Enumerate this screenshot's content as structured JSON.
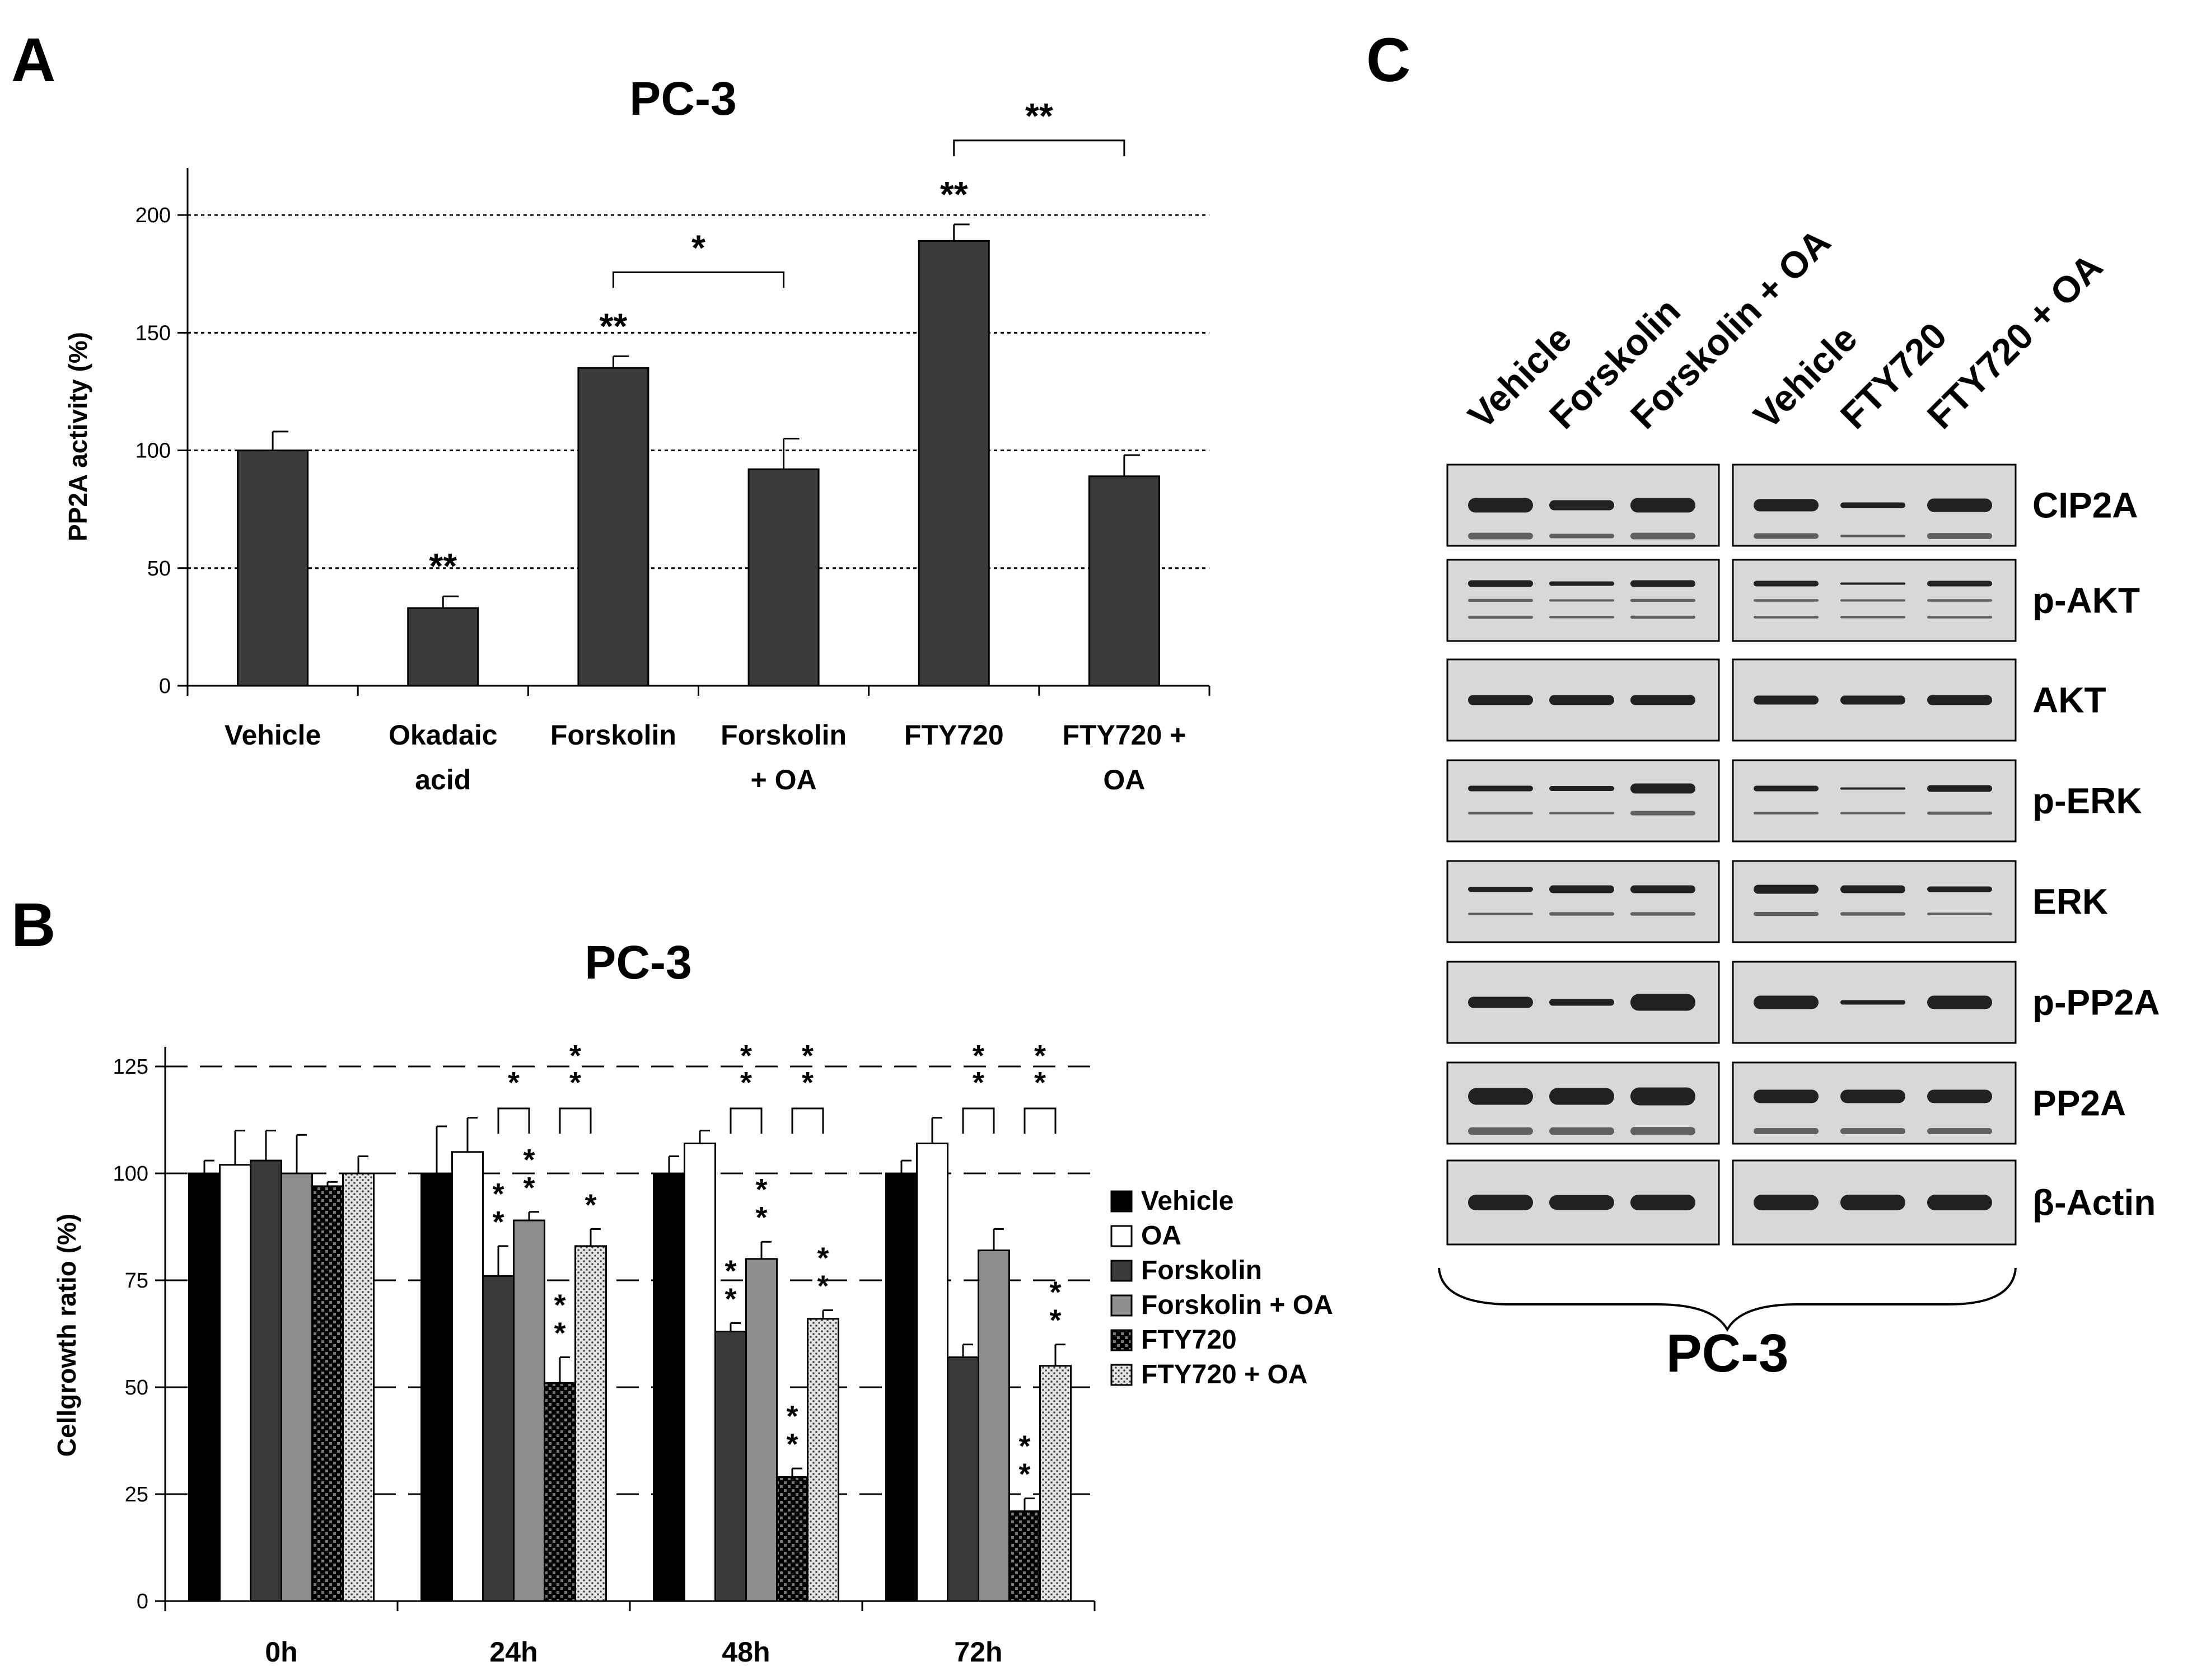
{
  "panels": {
    "a": {
      "letter": "A"
    },
    "b": {
      "letter": "B"
    },
    "c": {
      "letter": "C"
    }
  },
  "colors": {
    "bar_dark": "#3a3a3a",
    "black": "#000000",
    "white": "#ffffff",
    "gray": "#8c8c8c",
    "blot_bg": "#d8d8d8"
  },
  "chart_data": [
    {
      "type": "bar",
      "panel": "A",
      "title": "PC-3",
      "ylabel": "PP2A activity (%)",
      "xlabel": "",
      "ylim": [
        0,
        220
      ],
      "yticks": [
        0,
        50,
        100,
        150,
        200
      ],
      "grid": "dotted horizontal at 50, 100, 150, 200",
      "categories": [
        "Vehicle",
        "Okadaic acid",
        "Forskolin",
        "Forskolin + OA",
        "FTY720",
        "FTY720 + OA"
      ],
      "category_lines": [
        [
          "Vehicle"
        ],
        [
          "Okadaic",
          "acid"
        ],
        [
          "Forskolin"
        ],
        [
          "Forskolin",
          "+ OA"
        ],
        [
          "FTY720"
        ],
        [
          "FTY720 +",
          "OA"
        ]
      ],
      "values": [
        100,
        33,
        135,
        92,
        189,
        89
      ],
      "errors": [
        8,
        5,
        5,
        13,
        7,
        9
      ],
      "significance": [
        {
          "index": 1,
          "label": "**"
        },
        {
          "index": 2,
          "label": "**"
        },
        {
          "index": 4,
          "label": "**"
        }
      ],
      "brackets": [
        {
          "from": 2,
          "to": 3,
          "label": "*"
        },
        {
          "from": 4,
          "to": 5,
          "label": "**"
        }
      ]
    },
    {
      "type": "bar",
      "panel": "B",
      "title": "PC-3",
      "ylabel": "Cellgrowth ratio (%)",
      "xlabel": "",
      "ylim": [
        0,
        130
      ],
      "yticks": [
        0,
        25,
        50,
        75,
        100,
        125
      ],
      "grid": "dashed horizontal at 25, 50, 75, 100, 125",
      "legend_position": "right",
      "categories": [
        "0h",
        "24h",
        "48h",
        "72h"
      ],
      "series": [
        {
          "name": "Vehicle",
          "values": [
            100,
            100,
            100,
            100
          ],
          "errors": [
            3,
            11,
            4,
            3
          ],
          "style": "black"
        },
        {
          "name": "OA",
          "values": [
            102,
            105,
            107,
            107
          ],
          "errors": [
            8,
            8,
            3,
            6
          ],
          "style": "white"
        },
        {
          "name": "Forskolin",
          "values": [
            103,
            76,
            63,
            57
          ],
          "errors": [
            7,
            7,
            2,
            3
          ],
          "style": "dark"
        },
        {
          "name": "Forskolin + OA",
          "values": [
            100,
            89,
            80,
            82
          ],
          "errors": [
            9,
            2,
            4,
            5
          ],
          "style": "gray"
        },
        {
          "name": "FTY720",
          "values": [
            97,
            51,
            29,
            21
          ],
          "errors": [
            1,
            6,
            2,
            3
          ],
          "style": "checker"
        },
        {
          "name": "FTY720 + OA",
          "values": [
            100,
            83,
            66,
            55
          ],
          "errors": [
            4,
            4,
            2,
            5
          ],
          "style": "dots"
        }
      ],
      "significance": [
        {
          "category": 1,
          "series": 2,
          "label": "**"
        },
        {
          "category": 1,
          "series": 3,
          "label": "**"
        },
        {
          "category": 1,
          "series": 4,
          "label": "**"
        },
        {
          "category": 1,
          "series": 5,
          "label": "*"
        },
        {
          "category": 2,
          "series": 2,
          "label": "**"
        },
        {
          "category": 2,
          "series": 3,
          "label": "**"
        },
        {
          "category": 2,
          "series": 4,
          "label": "**"
        },
        {
          "category": 2,
          "series": 5,
          "label": "**"
        },
        {
          "category": 3,
          "series": 4,
          "label": "**"
        },
        {
          "category": 3,
          "series": 5,
          "label": "**"
        }
      ],
      "brackets": [
        {
          "category": 1,
          "from": 2,
          "to": 3,
          "label": "*"
        },
        {
          "category": 1,
          "from": 4,
          "to": 5,
          "label": "**"
        },
        {
          "category": 2,
          "from": 2,
          "to": 3,
          "label": "**"
        },
        {
          "category": 2,
          "from": 4,
          "to": 5,
          "label": "**"
        },
        {
          "category": 3,
          "from": 2,
          "to": 3,
          "label": "**"
        },
        {
          "category": 3,
          "from": 4,
          "to": 5,
          "label": "**"
        }
      ]
    }
  ],
  "western_blot": {
    "lanes_left": [
      "Vehicle",
      "Forskolin",
      "Forskolin + OA"
    ],
    "lanes_right": [
      "Vehicle",
      "FTY720",
      "FTY720 + OA"
    ],
    "proteins": [
      "CIP2A",
      "p-AKT",
      "AKT",
      "p-ERK",
      "ERK",
      "p-PP2A",
      "PP2A",
      "β-Actin"
    ],
    "cell_line": "PC-3"
  }
}
